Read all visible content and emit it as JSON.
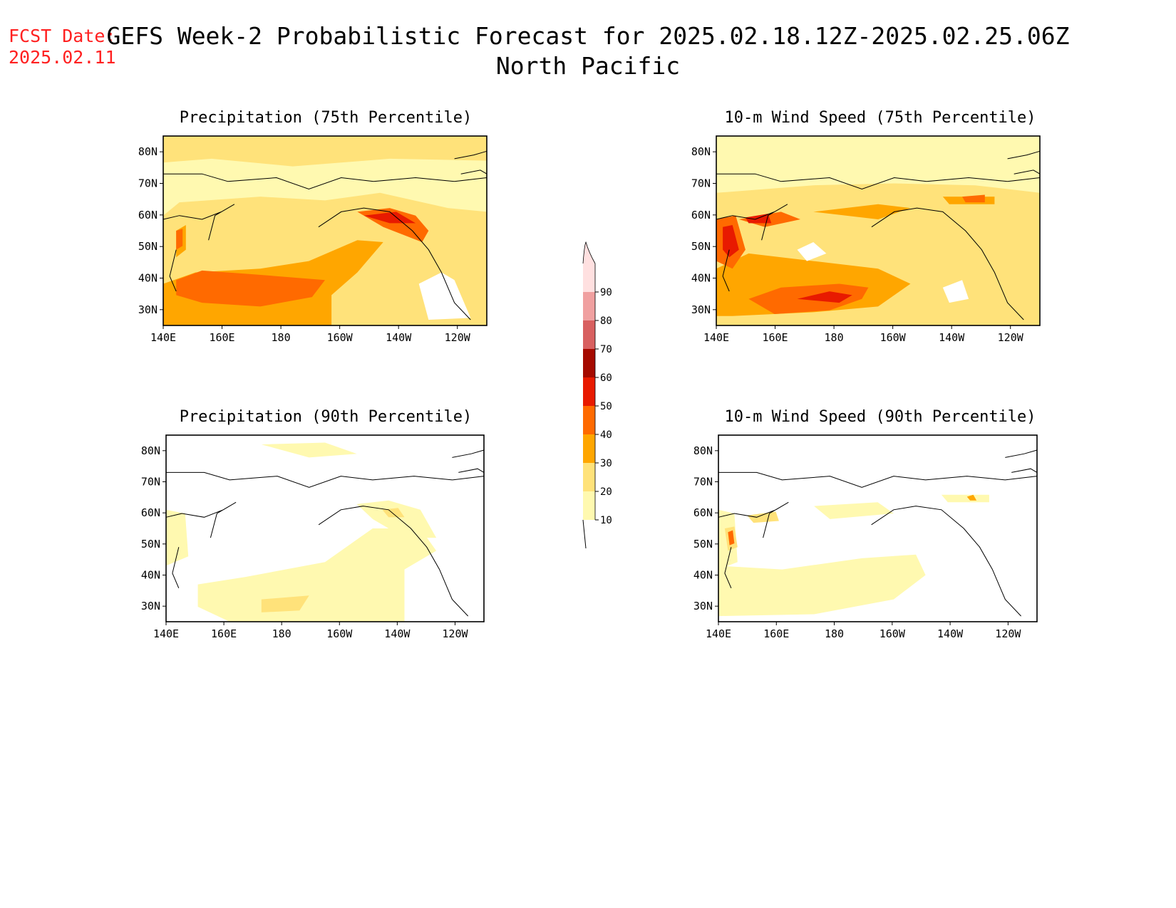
{
  "header": {
    "fcst_label": "FCST Date:",
    "fcst_date": "2025.02.11",
    "title_line1": "GEFS Week-2 Probabilistic Forecast for 2025.02.18.12Z-2025.02.25.06Z",
    "title_line2": "North Pacific"
  },
  "panels": [
    {
      "title": "Precipitation (75th Percentile)",
      "variable": "precipitation",
      "percentile": 75
    },
    {
      "title": "10-m Wind Speed (75th Percentile)",
      "variable": "wind",
      "percentile": 75
    },
    {
      "title": "Precipitation (90th Percentile)",
      "variable": "precipitation",
      "percentile": 90
    },
    {
      "title": "10-m Wind Speed (90th Percentile)",
      "variable": "wind",
      "percentile": 90
    }
  ],
  "axes": {
    "x_ticks": [
      "140E",
      "160E",
      "180",
      "160W",
      "140W",
      "120W"
    ],
    "y_ticks": [
      "80N",
      "70N",
      "60N",
      "50N",
      "40N",
      "30N"
    ],
    "lon_range": [
      140,
      250
    ],
    "lat_range": [
      25,
      85
    ]
  },
  "colorbar": {
    "levels": [
      "10",
      "20",
      "30",
      "40",
      "50",
      "60",
      "70",
      "80",
      "90"
    ],
    "colors": [
      "#fff9b0",
      "#ffe27a",
      "#ffa600",
      "#ff6a00",
      "#e81a00",
      "#a50a00",
      "#d86060",
      "#f0a0a0",
      "#ffe0e0"
    ]
  }
}
